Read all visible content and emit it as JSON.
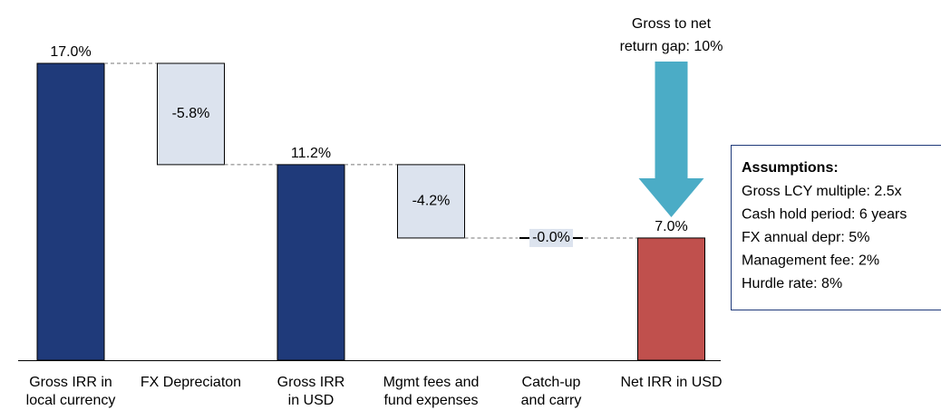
{
  "chart_data": {
    "type": "waterfall",
    "categories": [
      [
        "Gross IRR in",
        "local currency"
      ],
      [
        "FX Depreciaton"
      ],
      [
        "Gross IRR",
        "in USD"
      ],
      [
        "Mgmt fees and",
        "fund expenses"
      ],
      [
        "Catch-up",
        "and carry"
      ],
      [
        "Net IRR in USD"
      ]
    ],
    "values": [
      17.0,
      -5.8,
      11.2,
      -4.2,
      -0.0,
      7.0
    ],
    "value_labels": [
      "17.0%",
      "-5.8%",
      "11.2%",
      "-4.2%",
      "-0.0%",
      "7.0%"
    ],
    "measure": [
      "total",
      "relative",
      "total",
      "relative",
      "relative",
      "total"
    ],
    "colors": [
      "#1f3a7a",
      "#dce3ee",
      "#1f3a7a",
      "#dce3ee",
      "#dce3ee",
      "#c0504d"
    ],
    "ylim": [
      0,
      17
    ],
    "annotation": {
      "lines": [
        "Gross to net",
        "return gap: 10%"
      ],
      "color": "#4bacc6"
    },
    "assumptions": {
      "title": "Assumptions:",
      "items": [
        "Gross LCY multiple: 2.5x",
        "Cash hold period: 6 years",
        "FX annual depr: 5%",
        "Management fee: 2%",
        "Hurdle rate: 8%"
      ]
    }
  }
}
